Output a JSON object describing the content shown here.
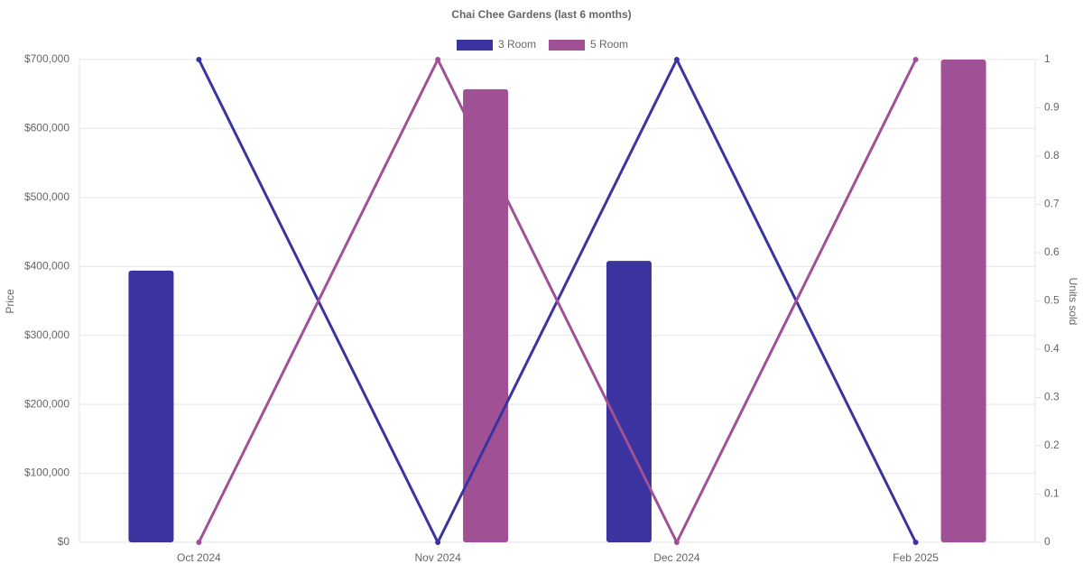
{
  "chart_data": {
    "type": "bar-line",
    "title": "Chai Chee Gardens (last 6 months)",
    "y_label": "Price",
    "y2_label": "Units sold",
    "categories": [
      "Oct 2024",
      "Nov 2024",
      "Dec 2024",
      "Feb 2025"
    ],
    "series": [
      {
        "name": "3 Room",
        "color": "#3a33a0",
        "values": [
          394000,
          null,
          408000,
          null
        ],
        "units_sold": [
          1,
          0,
          1,
          0
        ]
      },
      {
        "name": "5 Room",
        "color": "#a05095",
        "values": [
          null,
          657000,
          null,
          700000
        ],
        "units_sold": [
          0,
          1,
          0,
          1
        ]
      }
    ],
    "ylim": [
      0,
      700000
    ],
    "yticks": [
      {
        "value": 0,
        "label": "$0"
      },
      {
        "value": 100000,
        "label": "$100,000"
      },
      {
        "value": 200000,
        "label": "$200,000"
      },
      {
        "value": 300000,
        "label": "$300,000"
      },
      {
        "value": 400000,
        "label": "$400,000"
      },
      {
        "value": 500000,
        "label": "$500,000"
      },
      {
        "value": 600000,
        "label": "$600,000"
      },
      {
        "value": 700000,
        "label": "$700,000"
      }
    ],
    "y2lim": [
      0,
      1
    ],
    "y2ticks": [
      0,
      0.1,
      0.2,
      0.3,
      0.4,
      0.5,
      0.6,
      0.7,
      0.8,
      0.9,
      1
    ],
    "grid": true
  }
}
